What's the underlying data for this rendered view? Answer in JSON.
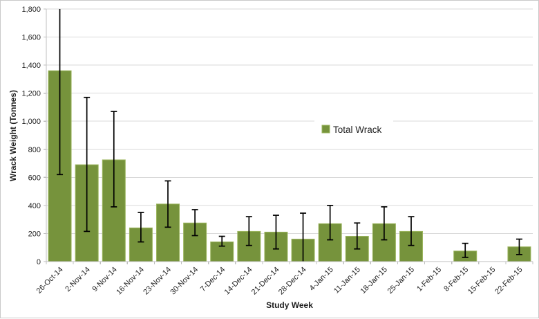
{
  "figure": {
    "background": "#FFFFFF",
    "border_color": "#C9C9C9"
  },
  "chart_data": {
    "type": "bar",
    "title": "",
    "xlabel": "Study Week",
    "ylabel": "Wrack Weight (Tonnes)",
    "ylim": [
      0,
      1800
    ],
    "ytick_step": 200,
    "ytick_labels": [
      "0",
      "200",
      "400",
      "600",
      "800",
      "1,000",
      "1,200",
      "1,400",
      "1,600",
      "1,800"
    ],
    "grid": true,
    "legend": {
      "label": "Total Wrack",
      "position": "floating-center-right",
      "marker": "square-icon"
    },
    "categories": [
      "26-Oct-14",
      "2-Nov-14",
      "9-Nov-14",
      "16-Nov-14",
      "23-Nov-14",
      "30-Nov-14",
      "7-Dec-14",
      "14-Dec-14",
      "21-Dec-14",
      "28-Dec-14",
      "4-Jan-15",
      "11-Jan-15",
      "18-Jan-15",
      "25-Jan-15",
      "1-Feb-15",
      "8-Feb-15",
      "15-Feb-15",
      "22-Feb-15"
    ],
    "series": [
      {
        "name": "Total Wrack",
        "values": [
          1360,
          690,
          725,
          240,
          410,
          275,
          140,
          215,
          210,
          160,
          270,
          180,
          270,
          215,
          0,
          75,
          0,
          105
        ],
        "error_low": [
          620,
          215,
          390,
          140,
          245,
          185,
          110,
          115,
          90,
          0,
          155,
          90,
          155,
          115,
          null,
          30,
          null,
          50
        ],
        "error_high": [
          1800,
          1170,
          1070,
          350,
          575,
          370,
          180,
          320,
          330,
          345,
          400,
          275,
          390,
          320,
          null,
          130,
          null,
          160
        ]
      }
    ],
    "colors": {
      "bar_fill": "#76933C",
      "bar_border": "#9BB55E",
      "error_bar": "#000000",
      "gridline": "#D9D9D9",
      "axis_line": "#BFBFBF",
      "text": "#1F1F1F"
    }
  }
}
